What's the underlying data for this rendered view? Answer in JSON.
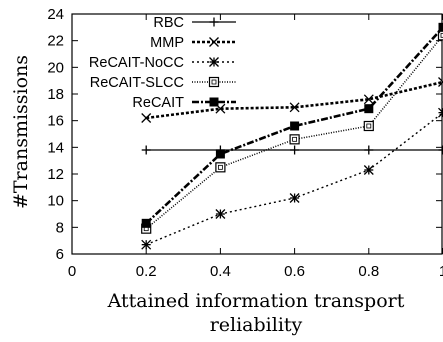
{
  "chart_data": {
    "type": "line",
    "xlabel_lines": [
      "Attained information transport",
      "reliability"
    ],
    "ylabel": "#Transmissions",
    "xlim": [
      0,
      1
    ],
    "ylim": [
      6,
      24
    ],
    "xticks": [
      0,
      0.2,
      0.4,
      0.6,
      0.8,
      1
    ],
    "xtick_labels": [
      "0",
      "0.2",
      "0.4",
      "0.6",
      "0.8",
      "1"
    ],
    "yticks": [
      6,
      8,
      10,
      12,
      14,
      16,
      18,
      20,
      22,
      24
    ],
    "ytick_labels": [
      "6",
      "8",
      "10",
      "12",
      "14",
      "16",
      "18",
      "20",
      "22",
      "24"
    ],
    "grid": false,
    "legend_position": "top-left",
    "series": [
      {
        "name": "RBC",
        "marker": "plus",
        "dash": "",
        "width": 1.3,
        "x": [
          0.2,
          0.4,
          0.6,
          0.8,
          1.0
        ],
        "y": [
          13.8,
          13.8,
          13.8,
          13.8,
          13.8
        ]
      },
      {
        "name": "MMP",
        "marker": "cross",
        "dash": "3,2",
        "width": 2.6,
        "x": [
          0.2,
          0.4,
          0.6,
          0.8,
          1.0
        ],
        "y": [
          16.2,
          16.9,
          17.0,
          17.6,
          18.9
        ]
      },
      {
        "name": "ReCAIT-NoCC",
        "marker": "star",
        "dash": "2,3",
        "width": 1.4,
        "x": [
          0.2,
          0.4,
          0.6,
          0.8,
          1.0
        ],
        "y": [
          6.7,
          9.0,
          10.2,
          12.3,
          16.6
        ]
      },
      {
        "name": "ReCAIT-SLCC",
        "marker": "open-square",
        "dash": "1,1.5",
        "width": 1.5,
        "x": [
          0.2,
          0.4,
          0.6,
          0.8,
          1.0
        ],
        "y": [
          7.9,
          12.5,
          14.6,
          15.6,
          22.4
        ]
      },
      {
        "name": "ReCAIT",
        "marker": "filled-square",
        "dash": "7,2,2,2",
        "width": 2.6,
        "x": [
          0.2,
          0.4,
          0.6,
          0.8,
          1.0
        ],
        "y": [
          8.3,
          13.5,
          15.6,
          16.9,
          23.0
        ]
      }
    ]
  }
}
